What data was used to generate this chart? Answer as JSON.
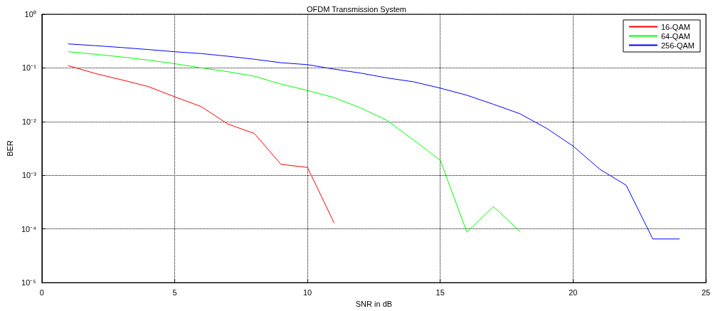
{
  "chart_data": {
    "type": "line",
    "title": "OFDM Transmission System",
    "xlabel": "SNR in dB",
    "ylabel": "BER",
    "series": [
      {
        "name": "16-QAM",
        "color": "#ff0000",
        "x": [
          1,
          2,
          3,
          4,
          5,
          6,
          7,
          8,
          9,
          10,
          11
        ],
        "values": [
          0.11,
          0.079,
          0.06,
          0.045,
          0.029,
          0.019,
          0.009,
          0.006,
          0.0016,
          0.0014,
          0.00013
        ]
      },
      {
        "name": "64-QAM",
        "color": "#00ff00",
        "x": [
          1,
          2,
          3,
          4,
          5,
          6,
          7,
          8,
          9,
          10,
          11,
          12,
          13,
          14,
          15,
          16,
          17,
          18
        ],
        "values": [
          0.2,
          0.18,
          0.16,
          0.14,
          0.12,
          0.1,
          0.085,
          0.07,
          0.05,
          0.038,
          0.028,
          0.018,
          0.0105,
          0.0045,
          0.0019,
          8.7e-05,
          0.00026,
          9e-05
        ]
      },
      {
        "name": "256-QAM",
        "color": "#0000ff",
        "x": [
          1,
          2,
          3,
          4,
          5,
          6,
          7,
          8,
          9,
          10,
          11,
          12,
          13,
          14,
          15,
          16,
          17,
          18,
          19,
          20,
          21,
          22,
          23,
          24
        ],
        "values": [
          0.28,
          0.26,
          0.24,
          0.22,
          0.2,
          0.185,
          0.165,
          0.145,
          0.125,
          0.115,
          0.095,
          0.08,
          0.065,
          0.055,
          0.042,
          0.031,
          0.021,
          0.014,
          0.0075,
          0.0035,
          0.0013,
          0.00065,
          6.5e-05,
          6.5e-05
        ]
      }
    ],
    "xlim": [
      0,
      25
    ],
    "xticks": [
      0,
      5,
      10,
      15,
      20,
      25
    ],
    "ylim": [
      1e-05,
      1
    ],
    "yticks": [
      {
        "value": 1,
        "label": "10⁰"
      },
      {
        "value": 0.1,
        "label": "10⁻¹"
      },
      {
        "value": 0.01,
        "label": "10⁻²"
      },
      {
        "value": 0.001,
        "label": "10⁻³"
      },
      {
        "value": 0.0001,
        "label": "10⁻⁴"
      },
      {
        "value": 1e-05,
        "label": "10⁻⁵"
      }
    ],
    "log": "y",
    "grid": true,
    "legend": "top right",
    "marker": "none",
    "line_style": "solid"
  }
}
